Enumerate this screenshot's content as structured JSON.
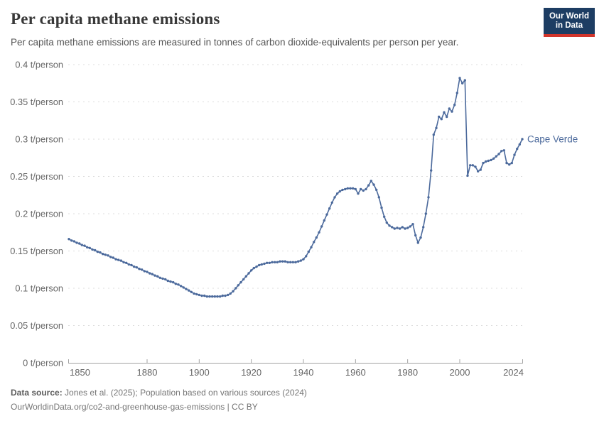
{
  "header": {
    "title": "Per capita methane emissions",
    "subtitle": "Per capita methane emissions are measured in tonnes of carbon dioxide-equivalents per person per year.",
    "logo": {
      "line1": "Our World",
      "line2": "in Data",
      "bg_color": "#1d3d63",
      "accent_color": "#d2352b"
    }
  },
  "chart_data": {
    "type": "line",
    "title": "Per capita methane emissions",
    "xlabel": "",
    "ylabel": "t/person",
    "xlim": [
      1850,
      2024
    ],
    "ylim": [
      0,
      0.4
    ],
    "x_ticks": [
      1850,
      1880,
      1900,
      1920,
      1940,
      1960,
      1980,
      2000,
      2024
    ],
    "y_ticks": [
      0,
      0.05,
      0.1,
      0.15,
      0.2,
      0.25,
      0.3,
      0.35,
      0.4
    ],
    "y_tick_suffix": " t/person",
    "grid": "horizontal-dashed",
    "legend_position": "end-of-line-label",
    "series": [
      {
        "name": "Cape Verde",
        "color": "#4c6a9c",
        "start_year": 1850,
        "end_year": 2024,
        "values": [
          0.166,
          0.164,
          0.163,
          0.161,
          0.16,
          0.158,
          0.157,
          0.155,
          0.154,
          0.152,
          0.151,
          0.149,
          0.148,
          0.146,
          0.145,
          0.144,
          0.142,
          0.141,
          0.139,
          0.138,
          0.137,
          0.135,
          0.134,
          0.132,
          0.131,
          0.129,
          0.128,
          0.126,
          0.125,
          0.123,
          0.122,
          0.12,
          0.119,
          0.117,
          0.116,
          0.114,
          0.113,
          0.112,
          0.11,
          0.109,
          0.108,
          0.106,
          0.105,
          0.103,
          0.101,
          0.099,
          0.097,
          0.095,
          0.093,
          0.092,
          0.091,
          0.09,
          0.09,
          0.089,
          0.089,
          0.089,
          0.089,
          0.089,
          0.089,
          0.09,
          0.09,
          0.091,
          0.093,
          0.096,
          0.1,
          0.104,
          0.108,
          0.112,
          0.116,
          0.12,
          0.124,
          0.127,
          0.129,
          0.131,
          0.132,
          0.133,
          0.134,
          0.134,
          0.135,
          0.135,
          0.135,
          0.136,
          0.136,
          0.136,
          0.135,
          0.135,
          0.135,
          0.135,
          0.136,
          0.137,
          0.139,
          0.143,
          0.149,
          0.155,
          0.162,
          0.168,
          0.175,
          0.183,
          0.191,
          0.199,
          0.207,
          0.215,
          0.222,
          0.227,
          0.23,
          0.232,
          0.233,
          0.234,
          0.234,
          0.234,
          0.233,
          0.227,
          0.233,
          0.231,
          0.233,
          0.238,
          0.244,
          0.239,
          0.232,
          0.222,
          0.208,
          0.196,
          0.188,
          0.184,
          0.182,
          0.18,
          0.181,
          0.18,
          0.182,
          0.18,
          0.181,
          0.183,
          0.186,
          0.171,
          0.161,
          0.168,
          0.182,
          0.2,
          0.222,
          0.258,
          0.306,
          0.315,
          0.33,
          0.327,
          0.336,
          0.33,
          0.341,
          0.337,
          0.346,
          0.362,
          0.382,
          0.375,
          0.379,
          0.251,
          0.265,
          0.265,
          0.263,
          0.257,
          0.259,
          0.268,
          0.27,
          0.271,
          0.272,
          0.274,
          0.277,
          0.28,
          0.284,
          0.285,
          0.268,
          0.266,
          0.268,
          0.279,
          0.287,
          0.293,
          0.3
        ]
      }
    ]
  },
  "footer": {
    "source_label": "Data source:",
    "source_text": " Jones et al. (2025); Population based on various sources (2024)",
    "link_line": "OurWorldinData.org/co2-and-greenhouse-gas-emissions | CC BY"
  }
}
